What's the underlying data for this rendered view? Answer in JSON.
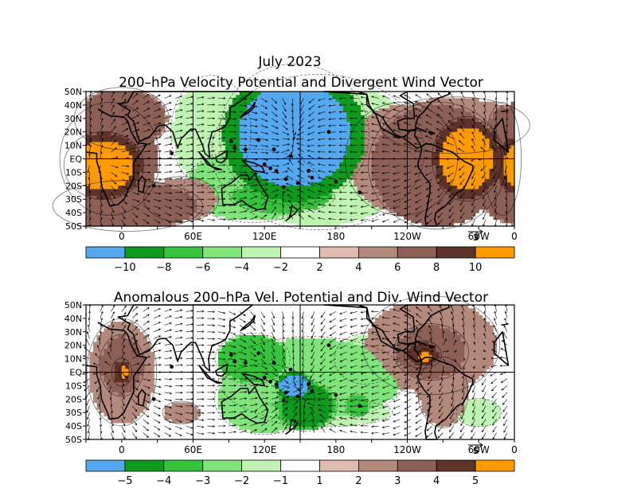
{
  "header": {
    "main_title": "July 2023"
  },
  "colors": {
    "blue": "#56a8ee",
    "dark_green": "#0e9a1c",
    "green": "#37c43c",
    "light_green": "#7fe47a",
    "pale_green": "#bff3b2",
    "white": "#ffffff",
    "pale_brown": "#dfbcae",
    "brown": "#b3897c",
    "mid_brown": "#8c6055",
    "dark_brown": "#5e3328",
    "orange": "#ff9b00",
    "land": "#000000"
  },
  "chart_data": [
    {
      "type": "heatmap",
      "title": "200–hPa Velocity Potential and Divergent Wind Vector",
      "x_tick_labels": [
        "0",
        "60E",
        "120E",
        "180",
        "120W",
        "60W",
        "0"
      ],
      "y_tick_labels": [
        "50N",
        "40N",
        "30N",
        "20N",
        "10N",
        "EQ",
        "10S",
        "20S",
        "30S",
        "40S",
        "50S"
      ],
      "xlim": [
        0,
        360
      ],
      "ylim": [
        -50,
        50
      ],
      "vector_reference": "3",
      "grid": true,
      "colorbar": {
        "labels": [
          "−10",
          "−8",
          "−6",
          "−4",
          "−2",
          "2",
          "4",
          "6",
          "8",
          "10"
        ],
        "bins": [
          "blue",
          "dark_green",
          "green",
          "light_green",
          "pale_green",
          "white",
          "pale_brown",
          "brown",
          "mid_brown",
          "dark_brown",
          "orange"
        ]
      },
      "features": [
        {
          "lon": 175,
          "lat": 18,
          "rx": 60,
          "ry": 50,
          "value": -11
        },
        {
          "lon": 165,
          "lat": -28,
          "rx": 42,
          "ry": 12,
          "value": -7
        },
        {
          "lon": 140,
          "lat": -20,
          "rx": 55,
          "ry": 26,
          "value": -5
        },
        {
          "lon": 195,
          "lat": 5,
          "rx": 85,
          "ry": 55,
          "value": -4
        },
        {
          "lon": 105,
          "lat": 20,
          "rx": 32,
          "ry": 40,
          "value": -3
        },
        {
          "lon": 30,
          "lat": 30,
          "rx": 38,
          "ry": 22,
          "value": 7
        },
        {
          "lon": 20,
          "lat": 0,
          "rx": 40,
          "ry": 40,
          "value": 8
        },
        {
          "lon": 35,
          "lat": -35,
          "rx": 60,
          "ry": 18,
          "value": 7
        },
        {
          "lon": 15,
          "lat": -5,
          "rx": 32,
          "ry": 24,
          "value": 11
        },
        {
          "lon": 80,
          "lat": -30,
          "rx": 30,
          "ry": 16,
          "value": 6
        },
        {
          "lon": 265,
          "lat": 0,
          "rx": 45,
          "ry": 40,
          "value": 5
        },
        {
          "lon": 295,
          "lat": -5,
          "rx": 55,
          "ry": 45,
          "value": 8
        },
        {
          "lon": 320,
          "lat": 0,
          "rx": 28,
          "ry": 30,
          "value": 11
        },
        {
          "lon": 350,
          "lat": 0,
          "rx": 15,
          "ry": 40,
          "value": 7
        },
        {
          "lon": 310,
          "lat": 25,
          "rx": 60,
          "ry": 20,
          "value": 6
        }
      ]
    },
    {
      "type": "heatmap",
      "title": "Anomalous 200–hPa Vel. Potential and Div. Wind Vector",
      "x_tick_labels": [
        "0",
        "60E",
        "120E",
        "180",
        "120W",
        "60W",
        "0"
      ],
      "y_tick_labels": [
        "50N",
        "40N",
        "30N",
        "20N",
        "10N",
        "EQ",
        "10S",
        "20S",
        "30S",
        "40S",
        "50S"
      ],
      "xlim": [
        0,
        360
      ],
      "ylim": [
        -50,
        50
      ],
      "vector_reference": "5",
      "grid": true,
      "colorbar": {
        "labels": [
          "−5",
          "−4",
          "−3",
          "−2",
          "−1",
          "1",
          "2",
          "3",
          "4",
          "5"
        ],
        "bins": [
          "blue",
          "dark_green",
          "green",
          "light_green",
          "pale_green",
          "white",
          "pale_brown",
          "brown",
          "mid_brown",
          "dark_brown",
          "orange"
        ]
      },
      "features": [
        {
          "lon": 190,
          "lat": -5,
          "rx": 75,
          "ry": 30,
          "value": -2.5
        },
        {
          "lon": 150,
          "lat": -20,
          "rx": 40,
          "ry": 25,
          "value": -2.5
        },
        {
          "lon": 140,
          "lat": 10,
          "rx": 30,
          "ry": 18,
          "value": -3.5
        },
        {
          "lon": 185,
          "lat": -25,
          "rx": 25,
          "ry": 18,
          "value": -4.5
        },
        {
          "lon": 175,
          "lat": -10,
          "rx": 15,
          "ry": 10,
          "value": -5.5
        },
        {
          "lon": 228,
          "lat": -25,
          "rx": 10,
          "ry": 8,
          "value": -3.5
        },
        {
          "lon": 235,
          "lat": 10,
          "rx": 25,
          "ry": 18,
          "value": -1.5
        },
        {
          "lon": 200,
          "lat": -30,
          "rx": 55,
          "ry": 10,
          "value": -1.5
        },
        {
          "lon": 330,
          "lat": -30,
          "rx": 18,
          "ry": 10,
          "value": -1.5
        },
        {
          "lon": 290,
          "lat": 20,
          "rx": 55,
          "ry": 35,
          "value": 2.5
        },
        {
          "lon": 290,
          "lat": 15,
          "rx": 30,
          "ry": 20,
          "value": 3.5
        },
        {
          "lon": 283,
          "lat": 13,
          "rx": 15,
          "ry": 10,
          "value": 4.5
        },
        {
          "lon": 285,
          "lat": 12,
          "rx": 6,
          "ry": 5,
          "value": 5.5
        },
        {
          "lon": 30,
          "lat": 0,
          "rx": 28,
          "ry": 38,
          "value": 2.5
        },
        {
          "lon": 30,
          "lat": 5,
          "rx": 18,
          "ry": 22,
          "value": 3.5
        },
        {
          "lon": 30,
          "lat": 0,
          "rx": 8,
          "ry": 10,
          "value": 4.5
        },
        {
          "lon": 32,
          "lat": 0,
          "rx": 4,
          "ry": 5,
          "value": 5.5
        },
        {
          "lon": 80,
          "lat": -30,
          "rx": 15,
          "ry": 8,
          "value": 2.5
        },
        {
          "lon": 300,
          "lat": -15,
          "rx": 20,
          "ry": 25,
          "value": 2.5
        }
      ]
    }
  ]
}
